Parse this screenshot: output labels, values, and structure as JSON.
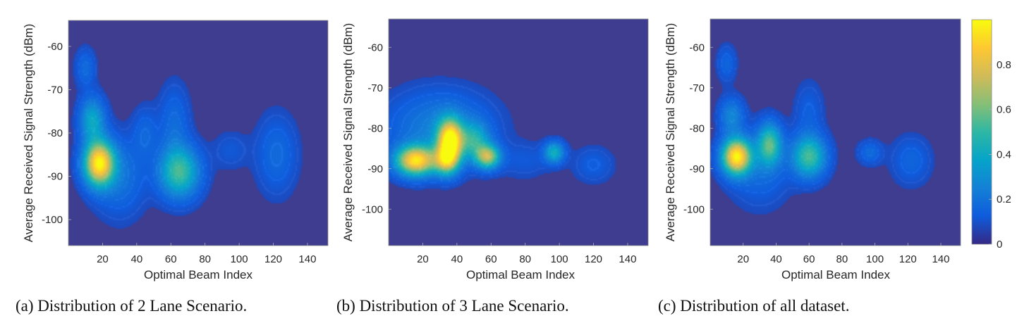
{
  "colors": {
    "background": "#3E3D8F",
    "colormap": [
      "#352A87",
      "#0F5CDD",
      "#1481D6",
      "#06A4CA",
      "#2EB7A4",
      "#87BF77",
      "#D1BB59",
      "#FEC832",
      "#F9FB0E"
    ]
  },
  "colorbar": {
    "range": [
      0,
      1
    ],
    "ticks": [
      0,
      0.2,
      0.4,
      0.6,
      0.8
    ],
    "tick_labels": [
      "0",
      "0.2",
      "0.4",
      "0.6",
      "0.8"
    ]
  },
  "chart_data": [
    {
      "type": "heatmap",
      "caption": "(a) Distribution of 2 Lane Scenario.",
      "xlabel": "Optimal Beam Index",
      "ylabel": "Average Received Signal Strength (dBm)",
      "xlim": [
        0,
        152
      ],
      "ylim": [
        -106,
        -54
      ],
      "xticks": [
        20,
        40,
        60,
        80,
        100,
        120,
        140
      ],
      "yticks": [
        -60,
        -70,
        -80,
        -90,
        -100
      ],
      "blobs": [
        {
          "x": 18,
          "y": -87,
          "sx": 6,
          "sy": 3.5,
          "w": 0.95
        },
        {
          "x": 14,
          "y": -77,
          "sx": 5,
          "sy": 3.5,
          "w": 0.35
        },
        {
          "x": 10,
          "y": -65,
          "sx": 4,
          "sy": 3,
          "w": 0.12
        },
        {
          "x": 65,
          "y": -89,
          "sx": 8,
          "sy": 4,
          "w": 0.5
        },
        {
          "x": 62,
          "y": -78,
          "sx": 6,
          "sy": 6,
          "w": 0.12
        },
        {
          "x": 45,
          "y": -80,
          "sx": 5,
          "sy": 4,
          "w": 0.1
        },
        {
          "x": 122,
          "y": -85,
          "sx": 8,
          "sy": 6,
          "w": 0.12
        },
        {
          "x": 95,
          "y": -84,
          "sx": 7,
          "sy": 3,
          "w": 0.06
        },
        {
          "x": 30,
          "y": -90,
          "sx": 10,
          "sy": 6,
          "w": 0.15
        }
      ]
    },
    {
      "type": "heatmap",
      "caption": "(b) Distribution of 3 Lane Scenario.",
      "xlabel": "Optimal Beam Index",
      "ylabel": "Average Received Signal Strength (dBm)",
      "xlim": [
        0,
        152
      ],
      "ylim": [
        -109,
        -53
      ],
      "xticks": [
        20,
        40,
        60,
        80,
        100,
        120,
        140
      ],
      "yticks": [
        -60,
        -70,
        -80,
        -90,
        -100
      ],
      "blobs": [
        {
          "x": 16,
          "y": -88,
          "sx": 8,
          "sy": 2.5,
          "w": 0.9
        },
        {
          "x": 36,
          "y": -83,
          "sx": 5,
          "sy": 3.5,
          "w": 0.95
        },
        {
          "x": 34,
          "y": -88,
          "sx": 5,
          "sy": 2.5,
          "w": 0.6
        },
        {
          "x": 58,
          "y": -87,
          "sx": 5,
          "sy": 2,
          "w": 0.65
        },
        {
          "x": 50,
          "y": -83,
          "sx": 6,
          "sy": 3,
          "w": 0.35
        },
        {
          "x": 97,
          "y": -86,
          "sx": 4,
          "sy": 1.8,
          "w": 0.38
        },
        {
          "x": 120,
          "y": -89,
          "sx": 8,
          "sy": 3,
          "w": 0.08
        },
        {
          "x": 30,
          "y": -80,
          "sx": 20,
          "sy": 6,
          "w": 0.2
        },
        {
          "x": 80,
          "y": -88,
          "sx": 10,
          "sy": 3,
          "w": 0.06
        }
      ]
    },
    {
      "type": "heatmap",
      "caption": "(c) Distribution of all dataset.",
      "xlabel": "Optimal Beam Index",
      "ylabel": "Average Received Signal Strength (dBm)",
      "xlim": [
        0,
        152
      ],
      "ylim": [
        -109,
        -53
      ],
      "xticks": [
        20,
        40,
        60,
        80,
        100,
        120,
        140
      ],
      "yticks": [
        -60,
        -70,
        -80,
        -90,
        -100
      ],
      "blobs": [
        {
          "x": 16,
          "y": -87,
          "sx": 6,
          "sy": 3,
          "w": 0.95
        },
        {
          "x": 36,
          "y": -84,
          "sx": 5,
          "sy": 3.5,
          "w": 0.5
        },
        {
          "x": 60,
          "y": -87,
          "sx": 7,
          "sy": 3.5,
          "w": 0.5
        },
        {
          "x": 13,
          "y": -77,
          "sx": 5,
          "sy": 3,
          "w": 0.22
        },
        {
          "x": 10,
          "y": -64,
          "sx": 4,
          "sy": 3,
          "w": 0.1
        },
        {
          "x": 97,
          "y": -86,
          "sx": 5,
          "sy": 2,
          "w": 0.12
        },
        {
          "x": 122,
          "y": -88,
          "sx": 8,
          "sy": 4,
          "w": 0.1
        },
        {
          "x": 60,
          "y": -76,
          "sx": 6,
          "sy": 5,
          "w": 0.08
        },
        {
          "x": 30,
          "y": -90,
          "sx": 12,
          "sy": 6,
          "w": 0.12
        }
      ]
    }
  ]
}
